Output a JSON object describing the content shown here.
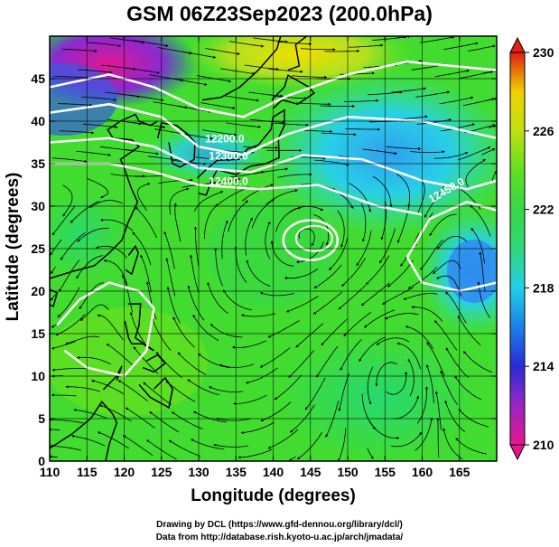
{
  "title": "GSM 06Z23Sep2023 (200.0hPa)",
  "xaxis": {
    "label": "Longitude (degrees)",
    "range": [
      110,
      170
    ],
    "ticks": [
      "110",
      "115",
      "120",
      "125",
      "130",
      "135",
      "140",
      "145",
      "150",
      "155",
      "160",
      "165"
    ]
  },
  "yaxis": {
    "label": "Latitude  (degrees)",
    "range": [
      0,
      50
    ],
    "ticks": [
      "0",
      "5",
      "10",
      "15",
      "20",
      "25",
      "30",
      "35",
      "40",
      "45"
    ]
  },
  "colorbar": {
    "range": [
      210,
      230
    ],
    "ticks": [
      "210",
      "214",
      "218",
      "222",
      "226",
      "230"
    ],
    "colors": [
      "#e8148c",
      "#9a26c8",
      "#2a2ad6",
      "#1a80e8",
      "#20d0e8",
      "#30d878",
      "#36d848",
      "#60e020",
      "#c0e010",
      "#f0d000",
      "#f08010",
      "#e02010"
    ]
  },
  "contour_labels": [
    "12200.0",
    "12300.0",
    "12400.0",
    "12450.0"
  ],
  "credits": {
    "line1": "Drawing by DCL (https://www.gfd-dennou.org/library/dcl/)",
    "line2": "Data from http://database.rish.kyoto-u.ac.jp/arch/jmadata/"
  }
}
